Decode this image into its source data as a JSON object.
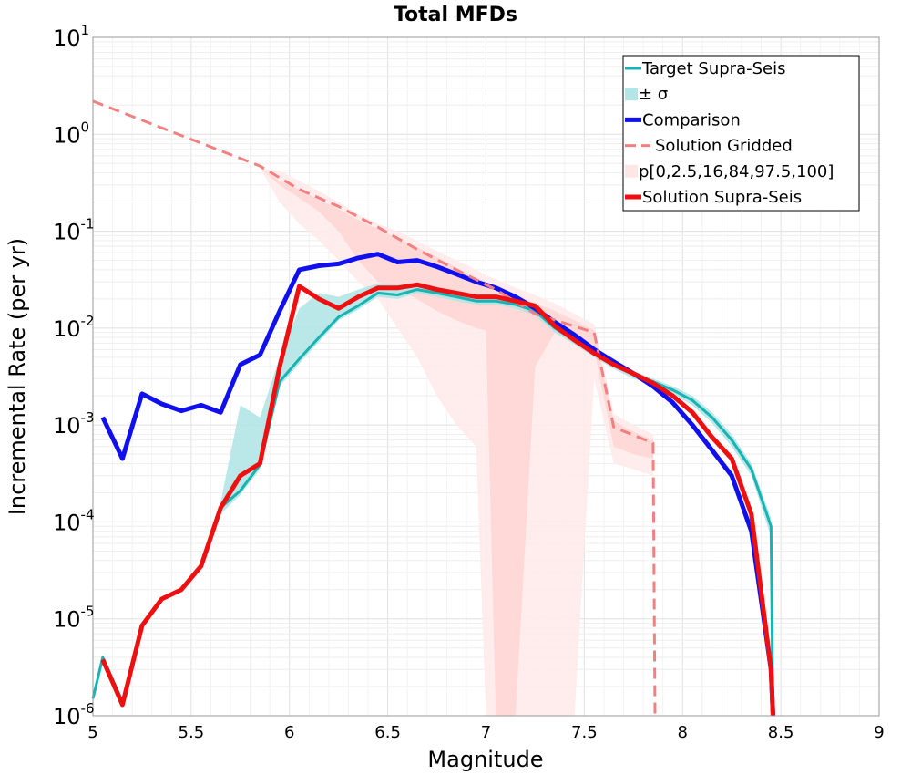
{
  "chart_data": {
    "type": "line",
    "title": "Total MFDs",
    "xlabel": "Magnitude",
    "ylabel": "Incremental Rate (per yr)",
    "xlim": [
      5,
      9
    ],
    "ylim": [
      1e-06,
      10
    ],
    "yscale": "log",
    "grid": true,
    "legend_position": "top-right",
    "x_ticks": [
      "5",
      "5.5",
      "6",
      "6.5",
      "7",
      "7.5",
      "8",
      "8.5",
      "9"
    ],
    "y_ticks": [
      {
        "base": "10",
        "exp": "1"
      },
      {
        "base": "10",
        "exp": "0"
      },
      {
        "base": "10",
        "exp": "-1"
      },
      {
        "base": "10",
        "exp": "-2"
      },
      {
        "base": "10",
        "exp": "-3"
      },
      {
        "base": "10",
        "exp": "-4"
      },
      {
        "base": "10",
        "exp": "-5"
      },
      {
        "base": "10",
        "exp": "-6"
      }
    ],
    "legend": [
      {
        "label": "Target Supra-Seis",
        "type": "line",
        "color": "#1ab3b3"
      },
      {
        "label": "± σ",
        "type": "fill",
        "color": "#b2e6e6"
      },
      {
        "label": "Comparison",
        "type": "line",
        "color": "#1010ee"
      },
      {
        "label": "Solution Gridded",
        "type": "dashed",
        "color": "#f28080"
      },
      {
        "label": "p[0,2.5,16,84,97.5,100]",
        "type": "fill",
        "color": "#ffe6e6"
      },
      {
        "label": "Solution Supra-Seis",
        "type": "line",
        "color": "#ee1010"
      }
    ],
    "series": [
      {
        "name": "Target Supra-Seis",
        "color": "#1ab3b3",
        "x": [
          5.0,
          5.05,
          5.15,
          5.25,
          5.35,
          5.45,
          5.55,
          5.65,
          5.75,
          5.85,
          5.95,
          6.05,
          6.15,
          6.25,
          6.35,
          6.45,
          6.55,
          6.65,
          6.75,
          6.85,
          6.95,
          7.05,
          7.15,
          7.25,
          7.35,
          7.45,
          7.55,
          7.65,
          7.75,
          7.85,
          7.95,
          8.05,
          8.15,
          8.25,
          8.35,
          8.45,
          8.46
        ],
        "y": [
          1.5e-06,
          4e-06,
          1.4e-06,
          8.5e-06,
          1.6e-05,
          2e-05,
          3.5e-05,
          0.00014,
          0.00021,
          0.00039,
          0.0028,
          0.0048,
          0.008,
          0.013,
          0.017,
          0.023,
          0.022,
          0.025,
          0.023,
          0.021,
          0.019,
          0.019,
          0.0175,
          0.015,
          0.01,
          0.0075,
          0.0055,
          0.0042,
          0.0033,
          0.0028,
          0.0023,
          0.0018,
          0.0012,
          0.0007,
          0.00035,
          9e-05,
          1e-06
        ]
      },
      {
        "name": "Comparison",
        "color": "#1010ee",
        "x": [
          5.05,
          5.15,
          5.25,
          5.35,
          5.45,
          5.55,
          5.65,
          5.75,
          5.85,
          5.95,
          6.05,
          6.15,
          6.25,
          6.35,
          6.45,
          6.55,
          6.65,
          6.75,
          6.85,
          6.95,
          7.05,
          7.15,
          7.25,
          7.35,
          7.45,
          7.55,
          7.65,
          7.75,
          7.85,
          7.95,
          8.05,
          8.15,
          8.25,
          8.35,
          8.45,
          8.46
        ],
        "y": [
          0.0012,
          0.00045,
          0.0021,
          0.00165,
          0.0014,
          0.0016,
          0.00135,
          0.0042,
          0.0053,
          0.015,
          0.04,
          0.044,
          0.046,
          0.053,
          0.058,
          0.048,
          0.05,
          0.043,
          0.036,
          0.03,
          0.026,
          0.021,
          0.016,
          0.0115,
          0.0085,
          0.006,
          0.0045,
          0.0034,
          0.0025,
          0.0017,
          0.001,
          0.00055,
          0.0003,
          8e-05,
          3e-06,
          1e-06
        ]
      },
      {
        "name": "Solution Gridded",
        "color": "#f28080",
        "dashed": true,
        "x": [
          5.0,
          5.85,
          6.05,
          6.25,
          6.45,
          6.65,
          6.85,
          7.05,
          7.25,
          7.55,
          7.65,
          7.85,
          7.86
        ],
        "y": [
          2.2,
          0.47,
          0.27,
          0.18,
          0.11,
          0.065,
          0.04,
          0.025,
          0.014,
          0.009,
          0.00095,
          0.00065,
          1e-06
        ]
      },
      {
        "name": "Solution Supra-Seis",
        "color": "#ee1010",
        "x": [
          5.05,
          5.15,
          5.25,
          5.35,
          5.45,
          5.55,
          5.65,
          5.75,
          5.85,
          5.95,
          6.05,
          6.15,
          6.25,
          6.35,
          6.45,
          6.55,
          6.65,
          6.75,
          6.85,
          6.95,
          7.05,
          7.15,
          7.25,
          7.35,
          7.45,
          7.55,
          7.65,
          7.75,
          7.85,
          7.95,
          8.05,
          8.15,
          8.25,
          8.35,
          8.45,
          8.46
        ],
        "y": [
          3.8e-06,
          1.3e-06,
          8.5e-06,
          1.6e-05,
          2e-05,
          3.5e-05,
          0.00014,
          0.0003,
          0.0004,
          0.004,
          0.027,
          0.02,
          0.016,
          0.021,
          0.026,
          0.026,
          0.028,
          0.025,
          0.023,
          0.021,
          0.021,
          0.019,
          0.017,
          0.0105,
          0.0075,
          0.0055,
          0.0042,
          0.0034,
          0.0027,
          0.002,
          0.00135,
          0.00075,
          0.00045,
          0.00012,
          3e-06,
          1e-06
        ]
      }
    ],
    "bands": [
      {
        "name": "± σ",
        "color": "#b2e6e6",
        "x": [
          5.65,
          5.75,
          5.85,
          5.95,
          6.05,
          6.15,
          6.25,
          6.35,
          6.45,
          6.55,
          6.65,
          6.75,
          6.85,
          6.95,
          7.05,
          7.15,
          7.25,
          7.35,
          7.45,
          7.55,
          7.65,
          7.75,
          7.85,
          7.95,
          8.05,
          8.15,
          8.25,
          8.35,
          8.45
        ],
        "upper": [
          0.00016,
          0.0016,
          0.0012,
          0.005,
          0.016,
          0.023,
          0.021,
          0.025,
          0.029,
          0.028,
          0.029,
          0.026,
          0.023,
          0.021,
          0.021,
          0.0195,
          0.017,
          0.0115,
          0.0083,
          0.006,
          0.0046,
          0.0036,
          0.003,
          0.0025,
          0.002,
          0.00135,
          0.0008,
          0.0004,
          0.00011
        ],
        "lower": [
          0.00012,
          0.00019,
          0.00035,
          0.0025,
          0.0043,
          0.0072,
          0.012,
          0.0155,
          0.021,
          0.02,
          0.023,
          0.021,
          0.019,
          0.0175,
          0.0175,
          0.016,
          0.0135,
          0.009,
          0.0068,
          0.005,
          0.0038,
          0.003,
          0.0026,
          0.0021,
          0.0016,
          0.00105,
          0.0006,
          0.0003,
          7e-05
        ]
      },
      {
        "name": "p[0,2.5,16,84,97.5,100] outer",
        "color": "#ffeaea",
        "x": [
          5.85,
          5.95,
          6.05,
          6.15,
          6.25,
          6.35,
          6.45,
          6.55,
          6.65,
          6.75,
          6.85,
          6.95,
          7.0,
          7.05,
          7.15,
          7.25,
          7.35,
          7.45,
          7.55,
          7.65,
          7.75,
          7.85
        ],
        "upper": [
          0.45,
          0.42,
          0.33,
          0.26,
          0.2,
          0.15,
          0.12,
          0.1,
          0.08,
          0.062,
          0.05,
          0.04,
          0.035,
          0.032,
          0.026,
          0.022,
          0.018,
          0.014,
          0.011,
          0.0013,
          0.001,
          0.0008
        ],
        "lower": [
          0.45,
          0.2,
          0.12,
          0.08,
          0.05,
          0.03,
          0.02,
          0.01,
          0.005,
          0.002,
          0.001,
          0.0006,
          1e-06,
          1e-06,
          1e-06,
          1e-06,
          1e-06,
          1e-06,
          0.003,
          0.0004,
          0.00035,
          0.0003
        ]
      },
      {
        "name": "p[0,2.5,16,84,97.5,100] inner",
        "color": "#ffd6d6",
        "x": [
          5.85,
          5.95,
          6.05,
          6.15,
          6.25,
          6.35,
          6.45,
          6.55,
          6.65,
          6.75,
          6.85,
          6.95,
          7.0,
          7.05,
          7.15,
          7.25,
          7.35,
          7.45,
          7.55,
          7.65,
          7.75,
          7.85
        ],
        "upper": [
          0.45,
          0.33,
          0.27,
          0.21,
          0.17,
          0.13,
          0.105,
          0.085,
          0.068,
          0.054,
          0.042,
          0.033,
          0.03,
          0.027,
          0.022,
          0.018,
          0.015,
          0.012,
          0.0095,
          0.0011,
          0.00085,
          0.0007
        ],
        "lower": [
          0.45,
          0.3,
          0.22,
          0.16,
          0.1,
          0.05,
          0.03,
          0.025,
          0.02,
          0.015,
          0.012,
          0.01,
          0.0095,
          1e-06,
          1e-06,
          0.004,
          0.009,
          0.008,
          0.006,
          0.0006,
          0.0005,
          0.00045
        ]
      }
    ]
  }
}
